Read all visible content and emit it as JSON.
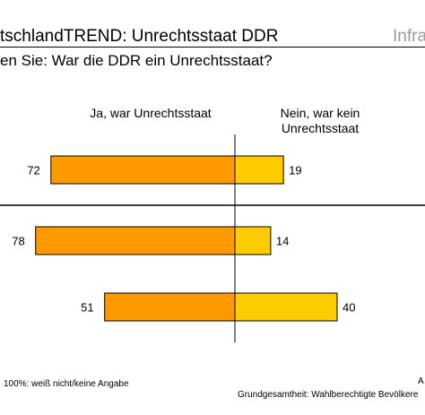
{
  "header": {
    "title": "tschlandTREND: Unrechtsstaat DDR",
    "brand": "Infra",
    "question": "en Sie: War die DDR ein Unrechtsstaat?"
  },
  "footer": {
    "note": "100%: weiß nicht/keine Angabe",
    "right_top": "A",
    "base": "Grundgesamtheit: Wahlberechtigte Bevölkere"
  },
  "colors": {
    "ja": "#FF9900",
    "nein": "#FFCC00"
  },
  "chart_data": {
    "type": "bar",
    "orientation": "diverging-horizontal",
    "legend": [
      "Ja, war Unrechtsstaat",
      "Nein, war kein Unrechtsstaat"
    ],
    "rows": [
      {
        "ja": 72,
        "nein": 19
      },
      {
        "ja": 78,
        "nein": 14
      },
      {
        "ja": 51,
        "nein": 40
      }
    ],
    "series": [
      {
        "name": "Ja, war Unrechtsstaat",
        "values": [
          72,
          78,
          51
        ]
      },
      {
        "name": "Nein, war kein Unrechtsstaat",
        "values": [
          19,
          14,
          40
        ]
      }
    ]
  }
}
